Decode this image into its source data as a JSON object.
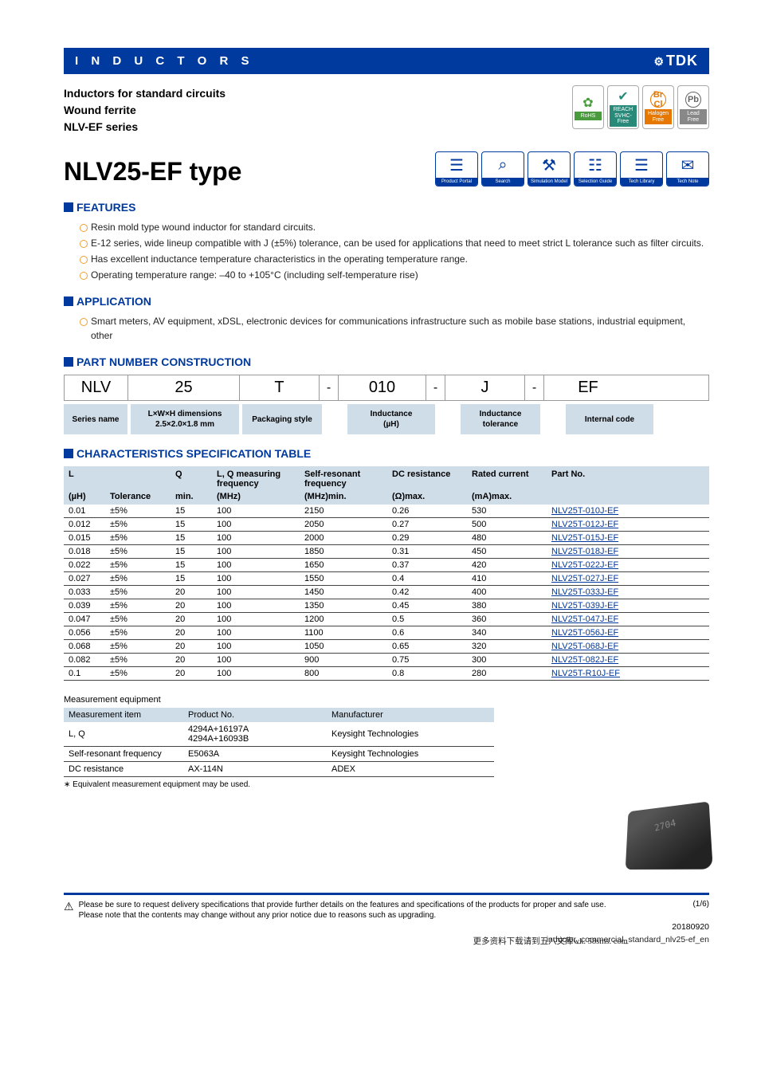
{
  "header": {
    "category": "I N D U C T O R S",
    "brand": "TDK"
  },
  "subtitle": {
    "line1": "Inductors for standard circuits",
    "line2": "Wound ferrite",
    "line3": "NLV-EF series"
  },
  "cert_badges": [
    {
      "icon": "✿",
      "icon_color": "ico-green",
      "label": "RoHS",
      "bg": "bg-green"
    },
    {
      "icon": "✔",
      "icon_color": "ico-teal",
      "label": "REACH\nSVHC-Free",
      "bg": "bg-teal"
    },
    {
      "icon": "Br Cl",
      "icon_color": "ico-orange",
      "label": "Halogen\nFree",
      "bg": "bg-orange",
      "small": true
    },
    {
      "icon": "Pb",
      "icon_color": "ico-gray",
      "label": "Lead\nFree",
      "bg": "bg-gray",
      "small": true
    }
  ],
  "title": "NLV25-EF type",
  "nav_badges": [
    {
      "icon": "☰",
      "label": "Product Portal"
    },
    {
      "icon": "⌕",
      "label": "Search"
    },
    {
      "icon": "⚒",
      "label": "Simulation Model"
    },
    {
      "icon": "☷",
      "label": "Selection Guide"
    },
    {
      "icon": "☰",
      "label": "Tech Library"
    },
    {
      "icon": "✉",
      "label": "Tech Note"
    }
  ],
  "features": {
    "title": "FEATURES",
    "items": [
      "Resin mold type wound inductor for standard circuits.",
      "E-12 series, wide lineup compatible with J (±5%) tolerance, can be used for applications that need to meet strict L tolerance such as filter circuits.",
      "Has excellent inductance temperature characteristics in the operating temperature range.",
      "Operating temperature range: –40 to +105°C (including self-temperature rise)"
    ]
  },
  "application": {
    "title": "APPLICATION",
    "items": [
      "Smart meters, AV equipment, xDSL, electronic devices for communications infrastructure such as mobile base stations, industrial equipment, other"
    ]
  },
  "partnum": {
    "title": "PART NUMBER CONSTRUCTION",
    "codes": {
      "c1": "NLV",
      "c2": "25",
      "c3": "T",
      "dash": "-",
      "c4": "010",
      "c5": "J",
      "c6": "EF"
    },
    "labels": {
      "l1": "Series name",
      "l2": "L×W×H dimensions\n2.5×2.0×1.8 mm",
      "l3": "Packaging style",
      "l4": "Inductance\n(µH)",
      "l5": "Inductance\ntolerance",
      "l6": "Internal code"
    }
  },
  "spec": {
    "title": "CHARACTERISTICS SPECIFICATION TABLE",
    "head1": [
      "L",
      "",
      "Q",
      "L, Q measuring frequency",
      "Self-resonant frequency",
      "DC resistance",
      "Rated current",
      "Part No."
    ],
    "head2": [
      "(µH)",
      "Tolerance",
      "min.",
      "(MHz)",
      "(MHz)min.",
      "(Ω)max.",
      "(mA)max.",
      ""
    ],
    "rows": [
      [
        "0.01",
        "±5%",
        "15",
        "100",
        "2150",
        "0.26",
        "530",
        "NLV25T-010J-EF"
      ],
      [
        "0.012",
        "±5%",
        "15",
        "100",
        "2050",
        "0.27",
        "500",
        "NLV25T-012J-EF"
      ],
      [
        "0.015",
        "±5%",
        "15",
        "100",
        "2000",
        "0.29",
        "480",
        "NLV25T-015J-EF"
      ],
      [
        "0.018",
        "±5%",
        "15",
        "100",
        "1850",
        "0.31",
        "450",
        "NLV25T-018J-EF"
      ],
      [
        "0.022",
        "±5%",
        "15",
        "100",
        "1650",
        "0.37",
        "420",
        "NLV25T-022J-EF"
      ],
      [
        "0.027",
        "±5%",
        "15",
        "100",
        "1550",
        "0.4",
        "410",
        "NLV25T-027J-EF"
      ],
      [
        "0.033",
        "±5%",
        "20",
        "100",
        "1450",
        "0.42",
        "400",
        "NLV25T-033J-EF"
      ],
      [
        "0.039",
        "±5%",
        "20",
        "100",
        "1350",
        "0.45",
        "380",
        "NLV25T-039J-EF"
      ],
      [
        "0.047",
        "±5%",
        "20",
        "100",
        "1200",
        "0.5",
        "360",
        "NLV25T-047J-EF"
      ],
      [
        "0.056",
        "±5%",
        "20",
        "100",
        "1100",
        "0.6",
        "340",
        "NLV25T-056J-EF"
      ],
      [
        "0.068",
        "±5%",
        "20",
        "100",
        "1050",
        "0.65",
        "320",
        "NLV25T-068J-EF"
      ],
      [
        "0.082",
        "±5%",
        "20",
        "100",
        "900",
        "0.75",
        "300",
        "NLV25T-082J-EF"
      ],
      [
        "0.1",
        "±5%",
        "20",
        "100",
        "800",
        "0.8",
        "280",
        "NLV25T-R10J-EF"
      ]
    ]
  },
  "meas": {
    "caption": "Measurement equipment",
    "head": [
      "Measurement item",
      "Product No.",
      "Manufacturer"
    ],
    "rows": [
      [
        "L, Q",
        "4294A+16197A\n4294A+16093B",
        "Keysight Technologies"
      ],
      [
        "Self-resonant frequency",
        "E5063A",
        "Keysight Technologies"
      ],
      [
        "DC resistance",
        "AX-114N",
        "ADEX"
      ]
    ],
    "footnote": "∗ Equivalent measurement equipment may be used."
  },
  "footer": {
    "warn1": "Please be sure to request delivery specifications that provide further details on the features and specifications of the products for proper and safe use.",
    "warn2": "Please note that the contents may change without any prior notice due to reasons such as upgrading.",
    "page": "(1/6)",
    "date": "20180920",
    "watermark": "更多资料下载请到五八文库wk. 58sms. com",
    "filename": "inductor_commercial_standard_nlv25-ef_en"
  }
}
